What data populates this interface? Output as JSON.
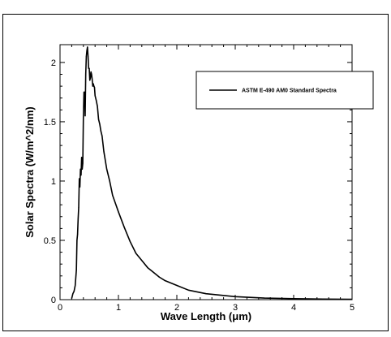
{
  "chart_data": {
    "type": "line",
    "title": "",
    "xlabel": "Wave Length (μm)",
    "ylabel": "Solar Spectra (W/m^2/nm)",
    "xlim": [
      0,
      5
    ],
    "ylim": [
      0,
      2.15
    ],
    "xticks": [
      "0",
      "1",
      "2",
      "3",
      "4",
      "5"
    ],
    "yticks": [
      "0",
      "0.5",
      "1",
      "1.5",
      "2"
    ],
    "grid": false,
    "legend_position": "top-right",
    "series": [
      {
        "name": "ASTM E-490 AM0 Standard Spectra",
        "color": "#000000",
        "x": [
          0.2,
          0.22,
          0.24,
          0.26,
          0.28,
          0.29,
          0.3,
          0.31,
          0.32,
          0.33,
          0.34,
          0.35,
          0.36,
          0.37,
          0.38,
          0.39,
          0.4,
          0.41,
          0.42,
          0.43,
          0.44,
          0.45,
          0.46,
          0.47,
          0.48,
          0.49,
          0.5,
          0.51,
          0.52,
          0.53,
          0.54,
          0.55,
          0.56,
          0.57,
          0.58,
          0.59,
          0.6,
          0.62,
          0.64,
          0.66,
          0.68,
          0.7,
          0.72,
          0.75,
          0.8,
          0.85,
          0.9,
          1.0,
          1.1,
          1.2,
          1.3,
          1.4,
          1.5,
          1.6,
          1.7,
          1.8,
          2.0,
          2.2,
          2.5,
          3.0,
          3.5,
          4.0,
          4.5,
          5.0
        ],
        "y": [
          0.01,
          0.05,
          0.07,
          0.12,
          0.25,
          0.5,
          0.55,
          0.68,
          0.78,
          1.02,
          0.95,
          1.1,
          1.05,
          1.2,
          1.1,
          1.15,
          1.55,
          1.75,
          1.75,
          1.55,
          1.9,
          2.05,
          2.1,
          2.13,
          2.05,
          1.95,
          1.95,
          1.85,
          1.87,
          1.92,
          1.9,
          1.86,
          1.8,
          1.82,
          1.8,
          1.79,
          1.72,
          1.68,
          1.63,
          1.52,
          1.48,
          1.42,
          1.38,
          1.25,
          1.1,
          1.0,
          0.88,
          0.74,
          0.61,
          0.49,
          0.39,
          0.33,
          0.27,
          0.23,
          0.19,
          0.16,
          0.12,
          0.08,
          0.05,
          0.025,
          0.013,
          0.008,
          0.005,
          0.003
        ]
      }
    ]
  }
}
